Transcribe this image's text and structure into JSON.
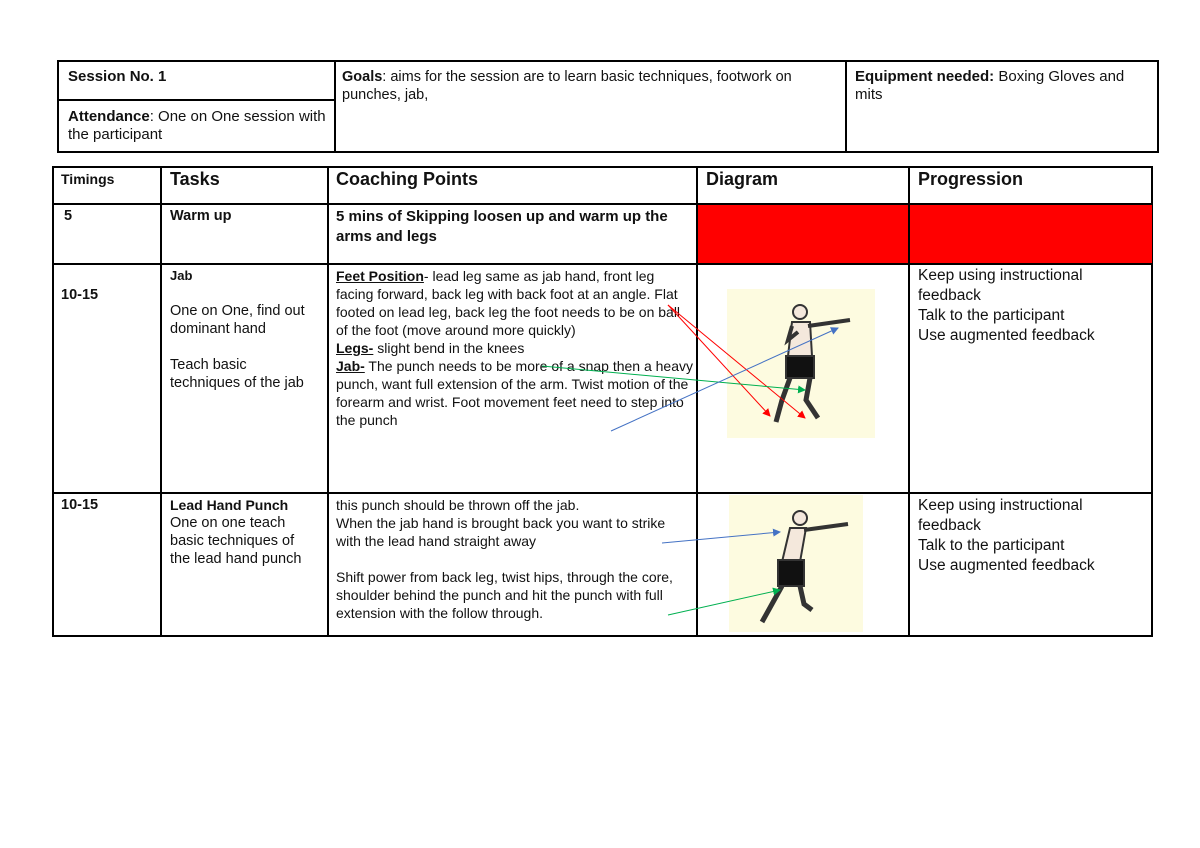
{
  "session": {
    "number_label": "Session No. 1",
    "attendance_label": "Attendance",
    "attendance_text": ": One on One session with the participant",
    "goals_label": "Goals",
    "goals_text": ":  aims for the session are to learn basic techniques, footwork on punches, jab,",
    "equipment_label": "Equipment needed:",
    "equipment_text": " Boxing Gloves and mits"
  },
  "table": {
    "headers": [
      "Timings",
      "Tasks",
      "Coaching Points",
      "Diagram",
      "Progression"
    ],
    "rows": [
      {
        "timing": "5",
        "task": "Warm up",
        "coaching": "5 mins of Skipping loosen up and warm up the arms and legs",
        "highlight": "#ff0000"
      },
      {
        "timing": "10-15",
        "task_title": "Jab",
        "task_lines": [
          "One on One, find out dominant hand",
          "Teach basic techniques of the jab"
        ],
        "coaching": [
          {
            "label": "Feet Position",
            "text": "- lead leg same as jab hand, front leg facing forward, back leg with back foot at an angle. Flat footed on lead leg, back leg the foot needs to be on ball of the foot (move around more quickly)"
          },
          {
            "label": "Legs-",
            "text": " slight bend in the knees"
          },
          {
            "label": "Jab-",
            "text": " The punch needs to be more of a snap then a heavy punch, want full extension of the arm. Twist motion of the forearm and wrist. Foot movement feet need to step into the punch"
          }
        ],
        "progression": [
          "Keep using instructional feedback",
          "Talk to the participant",
          "Use augmented feedback"
        ]
      },
      {
        "timing": "10-15",
        "task_title": "Lead Hand Punch",
        "task_text": "One on one teach basic techniques of the lead hand punch",
        "coaching": [
          "this punch should be thrown off the jab.",
          "When the jab hand is brought back you want to strike with the lead hand straight away",
          "Shift power from back leg, twist hips, through the core, shoulder behind the punch and hit the punch with full extension with the follow through."
        ],
        "progression": [
          "Keep using instructional feedback",
          "Talk to the participant",
          "Use augmented feedback"
        ]
      }
    ]
  },
  "arrow_colors": {
    "red": "#ff0000",
    "green": "#00b050",
    "blue": "#4472c4"
  }
}
